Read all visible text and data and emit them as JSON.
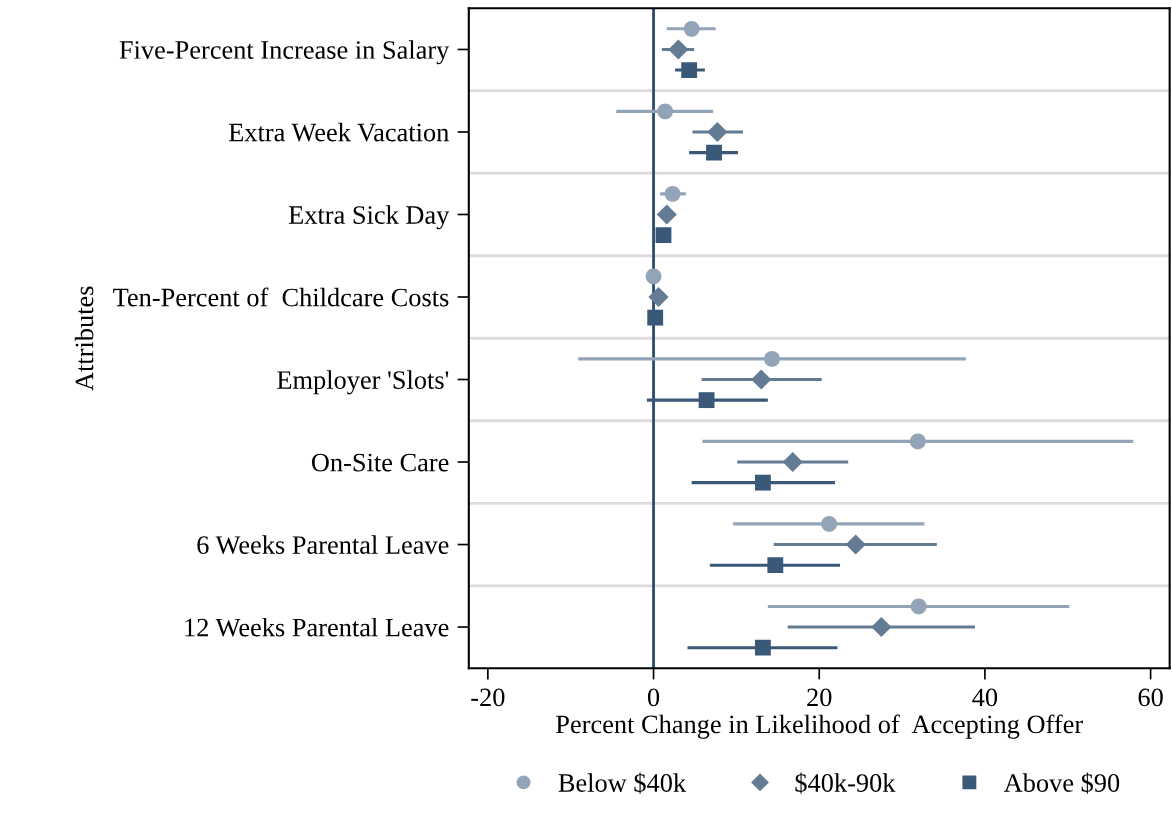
{
  "chart_data": {
    "type": "scatter",
    "orientation": "horizontal",
    "xlabel": "Percent Change in Likelihood of  Accepting Offer",
    "ylabel": "Attributes",
    "categories": [
      "Five-Percent Increase in Salary",
      "Extra Week Vacation",
      "Extra Sick Day",
      "Ten-Percent of  Childcare Costs",
      "Employer 'Slots'",
      "On-Site Care",
      "6 Weeks Parental Leave",
      "12 Weeks Parental Leave"
    ],
    "series": [
      {
        "name": "Below $40k",
        "color": "#94a4b8",
        "marker": "circle",
        "values": [
          4.6,
          1.4,
          2.3,
          0.0,
          14.3,
          31.9,
          21.2,
          32.0
        ],
        "errors": [
          [
            1.6,
            7.5
          ],
          [
            -4.5,
            7.2
          ],
          [
            0.8,
            3.9
          ],
          null,
          [
            -9.1,
            37.7
          ],
          [
            5.9,
            57.9
          ],
          [
            9.6,
            32.7
          ],
          [
            13.8,
            50.2
          ]
        ]
      },
      {
        "name": "$40k-90k",
        "color": "#647b94",
        "marker": "diamond",
        "values": [
          3.0,
          7.7,
          1.6,
          0.6,
          13.0,
          16.8,
          24.4,
          27.5
        ],
        "errors": [
          [
            1.0,
            4.9
          ],
          [
            4.7,
            10.8
          ],
          null,
          null,
          [
            5.8,
            20.3
          ],
          [
            10.1,
            23.5
          ],
          [
            14.5,
            34.2
          ],
          [
            16.2,
            38.8
          ]
        ]
      },
      {
        "name": "Above $90",
        "color": "#3a5878",
        "marker": "square",
        "values": [
          4.3,
          7.3,
          1.2,
          0.2,
          6.4,
          13.2,
          14.7,
          13.2
        ],
        "errors": [
          [
            2.6,
            6.2
          ],
          [
            4.3,
            10.2
          ],
          null,
          null,
          [
            -0.8,
            13.8
          ],
          [
            4.6,
            21.9
          ],
          [
            6.8,
            22.5
          ],
          [
            4.1,
            22.2
          ]
        ]
      }
    ],
    "xlim": [
      -22.3,
      62.3
    ],
    "xticks": [
      -20,
      0,
      20,
      40,
      60
    ],
    "ref_lines": [
      {
        "axis": "x",
        "value": 0,
        "color": "#2c4a6e"
      }
    ],
    "grid": "y",
    "legend": "bottom"
  }
}
